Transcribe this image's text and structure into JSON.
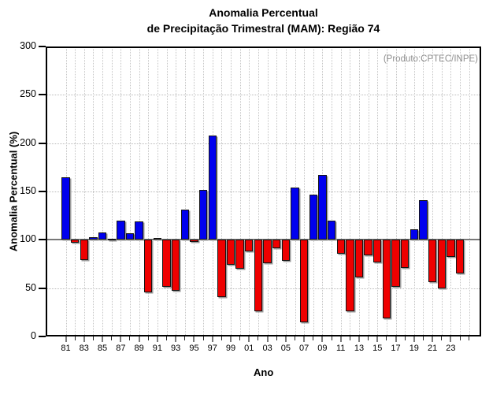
{
  "chart_data": {
    "type": "bar",
    "title_line1": "Anomalia Percentual",
    "title_line2": "de Precipitação Trimestral (MAM): Região 74",
    "annotation": "(Produto:CPTEC/INPE)",
    "xlabel": "Ano",
    "ylabel": "Anomalia Percentual (%)",
    "ylim": [
      0,
      300
    ],
    "ytick_step": 50,
    "ytick_labels": [
      "0",
      "50",
      "100",
      "150",
      "200",
      "250",
      "300"
    ],
    "baseline": 100,
    "grid": true,
    "legend_position": "none",
    "x_labels_shown": [
      "81",
      "83",
      "85",
      "87",
      "89",
      "91",
      "93",
      "95",
      "97",
      "99",
      "01",
      "03",
      "05",
      "07",
      "09",
      "11",
      "13",
      "15",
      "17",
      "19",
      "21",
      "23"
    ],
    "categories": [
      "81",
      "82",
      "83",
      "84",
      "85",
      "86",
      "87",
      "88",
      "89",
      "90",
      "91",
      "92",
      "93",
      "94",
      "95",
      "96",
      "97",
      "98",
      "99",
      "00",
      "01",
      "02",
      "03",
      "04",
      "05",
      "06",
      "07",
      "08",
      "09",
      "10",
      "11",
      "12",
      "13",
      "14",
      "15",
      "16",
      "17",
      "18",
      "19",
      "20",
      "21",
      "22",
      "23",
      "24"
    ],
    "values": [
      165,
      97,
      79,
      103,
      108,
      101,
      120,
      107,
      119,
      46,
      102,
      51,
      47,
      131,
      98,
      152,
      208,
      41,
      74,
      70,
      88,
      26,
      76,
      91,
      78,
      154,
      15,
      147,
      167,
      120,
      86,
      26,
      61,
      84,
      77,
      19,
      51,
      71,
      111,
      141,
      56,
      50,
      82,
      65
    ],
    "colors": {
      "above_baseline": "#0000ee",
      "below_baseline": "#ee0000",
      "baseline_line": "#787878",
      "grid_line": "#c4c4c4",
      "frame": "#000000",
      "annotation_text": "#8f8f8f"
    }
  }
}
